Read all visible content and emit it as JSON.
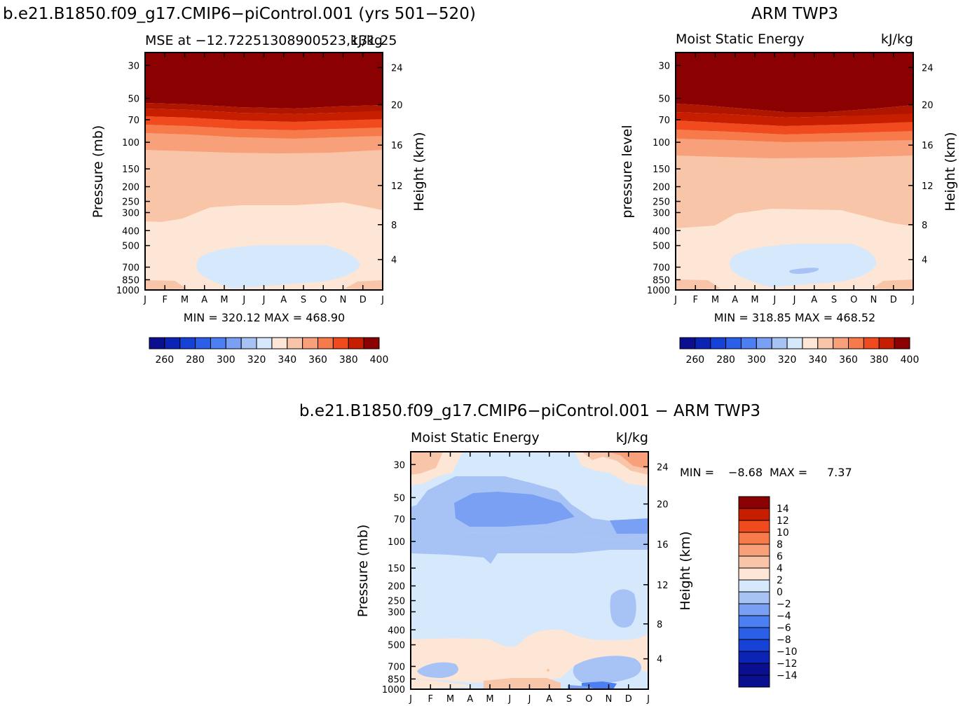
{
  "figure": {
    "main_title": "b.e21.B1850.f09_g17.CMIP6−piControl.001 (yrs 501−520)",
    "obs_title": "ARM TWP3",
    "diff_title": "b.e21.B1850.f09_g17.CMIP6−piControl.001 − ARM TWP3",
    "colors": {
      "blue_deep": "#0a0f8f",
      "blue_light": "#d6e8fb",
      "cream": "#fde6d5",
      "orange_light": "#f9c5a8",
      "red_dark": "#8b0000"
    }
  },
  "chart_data": [
    {
      "id": "model",
      "type": "heatmap",
      "subtitle_left": "MSE at −12.72251308900523,131.25",
      "subtitle_right": "kJ/kg",
      "ylabel": "Pressure (mb)",
      "ylabel_right": "Height (km)",
      "x_ticks": [
        "J",
        "F",
        "M",
        "A",
        "M",
        "J",
        "J",
        "A",
        "S",
        "O",
        "N",
        "D",
        "J"
      ],
      "y_ticks": [
        "30",
        "50",
        "70",
        "100",
        "150",
        "200",
        "250",
        "300",
        "400",
        "500",
        "700",
        "850",
        "1000"
      ],
      "height_ticks": [
        "24",
        "20",
        "16",
        "12",
        "8",
        "4"
      ],
      "stats": "MIN = 320.12  MAX = 468.90",
      "levels": [
        260,
        270,
        280,
        290,
        300,
        310,
        320,
        330,
        340,
        350,
        360,
        370,
        380,
        390,
        400
      ],
      "colorbar_labels": [
        "260",
        "280",
        "300",
        "320",
        "340",
        "360",
        "380",
        "400"
      ],
      "colors": [
        "#0a0f8f",
        "#0b24b5",
        "#1541d6",
        "#2b5fe8",
        "#4b7ff2",
        "#7aa0f4",
        "#a7c3f5",
        "#d6e8fb",
        "#fde6d5",
        "#f9c5a8",
        "#f8a07a",
        "#f77a4a",
        "#f04a1e",
        "#c81e00",
        "#8b0000"
      ]
    },
    {
      "id": "obs",
      "type": "heatmap",
      "subtitle_left": "Moist Static Energy",
      "subtitle_right": "kJ/kg",
      "ylabel": "pressure level",
      "ylabel_right": "Height (km)",
      "x_ticks": [
        "J",
        "F",
        "M",
        "A",
        "M",
        "J",
        "J",
        "A",
        "S",
        "O",
        "N",
        "D",
        "J"
      ],
      "y_ticks": [
        "30",
        "50",
        "70",
        "100",
        "150",
        "200",
        "250",
        "300",
        "400",
        "500",
        "700",
        "850",
        "1000"
      ],
      "height_ticks": [
        "24",
        "20",
        "16",
        "12",
        "8",
        "4"
      ],
      "stats": "MIN = 318.85  MAX = 468.52",
      "levels": [
        260,
        270,
        280,
        290,
        300,
        310,
        320,
        330,
        340,
        350,
        360,
        370,
        380,
        390,
        400
      ],
      "colorbar_labels": [
        "260",
        "280",
        "300",
        "320",
        "340",
        "360",
        "380",
        "400"
      ]
    },
    {
      "id": "diff",
      "type": "heatmap",
      "subtitle_left": "Moist Static Energy",
      "subtitle_right": "kJ/kg",
      "ylabel": "Pressure (mb)",
      "ylabel_right": "Height (km)",
      "x_ticks": [
        "J",
        "F",
        "M",
        "A",
        "M",
        "J",
        "J",
        "A",
        "S",
        "O",
        "N",
        "D",
        "J"
      ],
      "y_ticks": [
        "30",
        "50",
        "70",
        "100",
        "150",
        "200",
        "250",
        "300",
        "400",
        "500",
        "700",
        "850",
        "1000"
      ],
      "height_ticks": [
        "24",
        "20",
        "16",
        "12",
        "8",
        "4"
      ],
      "stats_min_label": "MIN =",
      "stats_min": "−8.68",
      "stats_max_label": "MAX =",
      "stats_max": "7.37",
      "levels": [
        -14,
        -12,
        -10,
        -8,
        -6,
        -4,
        -2,
        0,
        2,
        4,
        6,
        8,
        10,
        12,
        14
      ],
      "colorbar_labels": [
        "14",
        "12",
        "10",
        "8",
        "6",
        "4",
        "2",
        "0",
        "−2",
        "−4",
        "−6",
        "−8",
        "−10",
        "−12",
        "−14"
      ]
    }
  ]
}
